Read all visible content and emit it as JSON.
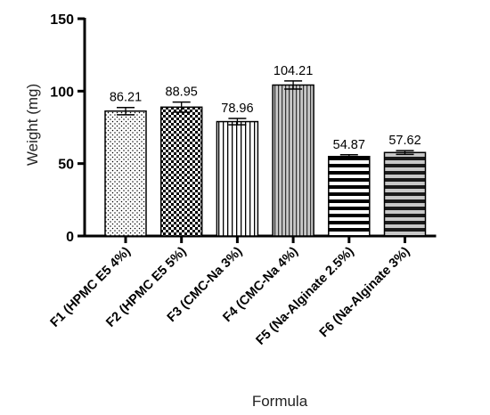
{
  "chart_data": {
    "type": "bar",
    "categories": [
      "F1 (HPMC E5 4%)",
      "F2 (HPMC E5 5%)",
      "F3 (CMC-Na 3%)",
      "F4 (CMC-Na 4%)",
      "F5 (Na-Alginate 2.5%)",
      "F6 (Na-Alginate 3%)"
    ],
    "values": [
      86.21,
      88.95,
      78.96,
      104.21,
      54.87,
      57.62
    ],
    "data_labels": [
      "86.21",
      "88.95",
      "78.96",
      "104.21",
      "54.87",
      "57.62"
    ],
    "error": [
      2.5,
      3.5,
      2.2,
      2.8,
      1.2,
      1.3
    ],
    "patterns": [
      "dots",
      "checker",
      "vertical-lines",
      "vertical-lines-gray",
      "horizontal-lines",
      "horizontal-lines-gray"
    ],
    "xlabel": "Formula",
    "ylabel": "Weight (mg)",
    "ylim": [
      0,
      150
    ],
    "yticks": [
      "0",
      "50",
      "100",
      "150"
    ],
    "grid": false
  }
}
